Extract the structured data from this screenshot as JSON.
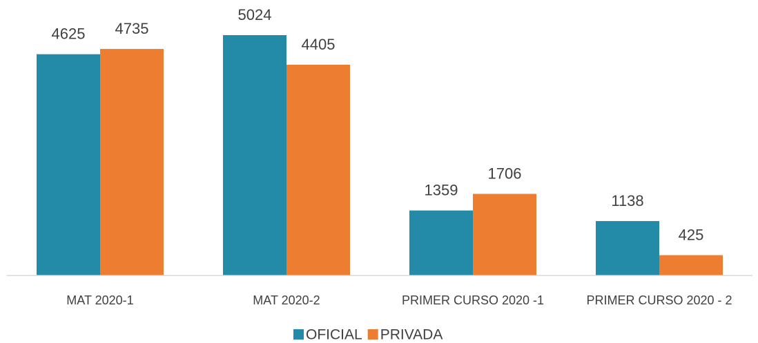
{
  "chart_data": {
    "type": "bar",
    "categories": [
      "MAT 2020-1",
      "MAT 2020-2",
      "PRIMER CURSO 2020 -1",
      "PRIMER CURSO 2020 - 2"
    ],
    "series": [
      {
        "name": "OFICIAL",
        "color": "#238aa8",
        "values": [
          4625,
          5024,
          1359,
          1138
        ]
      },
      {
        "name": "PRIVADA",
        "color": "#ed7d31",
        "values": [
          4735,
          4405,
          1706,
          425
        ]
      }
    ],
    "legend": "bottom"
  }
}
